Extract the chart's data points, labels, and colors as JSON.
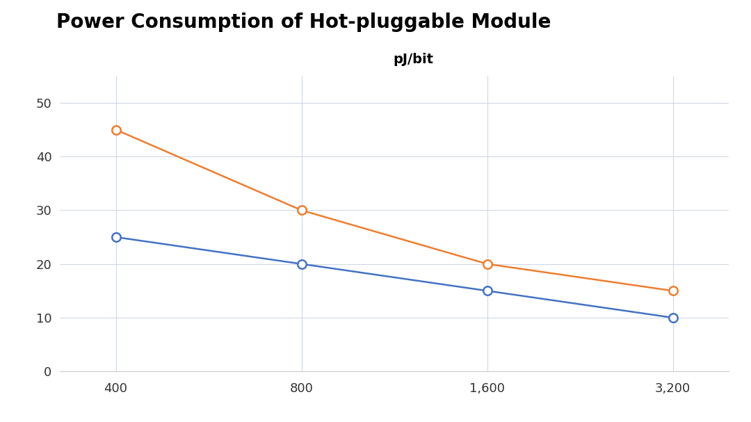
{
  "title": "Power Consumption of Hot-pluggable Module",
  "subtitle": "pJ/bit",
  "x_positions": [
    0,
    1,
    2,
    3
  ],
  "x_tick_labels": [
    "400",
    "800",
    "1,600",
    "3,200"
  ],
  "series": [
    {
      "y_values": [
        25,
        20,
        15,
        10
      ],
      "color": "#4472C4",
      "marker": "o",
      "marker_facecolor": "white",
      "linewidth": 1.8
    },
    {
      "y_values": [
        45,
        30,
        20,
        15
      ],
      "color": "#ED7D31",
      "marker": "o",
      "marker_facecolor": "white",
      "linewidth": 1.8
    }
  ],
  "ylim": [
    0,
    55
  ],
  "yticks": [
    0,
    10,
    20,
    30,
    40,
    50
  ],
  "xlim": [
    -0.3,
    3.3
  ],
  "background_color": "#ffffff",
  "grid_color": "#d0d8e8",
  "title_fontsize": 20,
  "subtitle_fontsize": 14,
  "tick_fontsize": 13,
  "marker_size": 9,
  "marker_edge_width": 1.8
}
